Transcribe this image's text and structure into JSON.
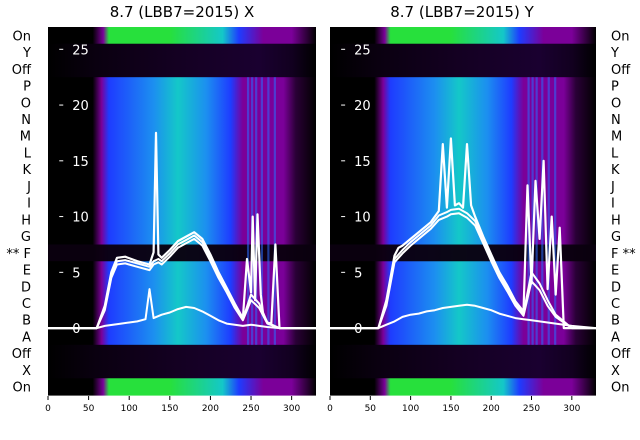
{
  "chart_data": [
    {
      "type": "heatmap",
      "title": "8.7 (LBB7=2015) X",
      "row_labels": [
        "On",
        "Y",
        "Off",
        "P",
        "O",
        "N",
        "M",
        "L",
        "K",
        "J",
        "I",
        "H",
        "G",
        "** F",
        "E",
        "D",
        "C",
        "B",
        "A",
        "Off",
        "X",
        "On"
      ],
      "marked_row": "** F",
      "xlim": [
        0,
        330
      ],
      "xticks": [
        0,
        50,
        100,
        150,
        200,
        250,
        300
      ],
      "ylim": [
        -6,
        27
      ],
      "yticks": [
        0,
        5,
        10,
        15,
        20,
        25
      ],
      "colormap": [
        "#000000",
        "#7b0099",
        "#1e3cff",
        "#1c8ff0",
        "#14c8c8",
        "#27e03c"
      ],
      "series": [
        {
          "x": [
            0,
            60,
            70,
            78,
            85,
            95,
            110,
            125,
            130,
            133,
            136,
            140,
            150,
            160,
            170,
            180,
            190,
            200,
            210,
            220,
            230,
            240,
            245,
            250,
            252,
            255,
            258,
            262,
            265,
            270,
            275,
            280,
            285,
            300,
            330
          ],
          "values": [
            0,
            0,
            2.0,
            5.0,
            6.3,
            6.4,
            6.0,
            5.7,
            6.8,
            17.5,
            6.6,
            6.3,
            7.0,
            7.8,
            8.2,
            8.6,
            8.0,
            6.6,
            5.0,
            3.6,
            2.2,
            0.9,
            6.2,
            3.2,
            10.0,
            2.5,
            10.2,
            3.0,
            1.2,
            0.5,
            0.4,
            7.5,
            0,
            0,
            0
          ]
        },
        {
          "x": [
            0,
            60,
            70,
            78,
            85,
            95,
            110,
            125,
            130,
            136,
            140,
            150,
            160,
            170,
            180,
            190,
            200,
            210,
            220,
            230,
            240,
            250,
            260,
            270,
            285,
            300,
            330
          ],
          "values": [
            0,
            0,
            1.8,
            4.8,
            6.0,
            6.1,
            5.8,
            5.5,
            6.0,
            6.2,
            6.0,
            6.7,
            7.5,
            7.9,
            8.3,
            7.7,
            6.3,
            4.8,
            3.4,
            2.0,
            0.8,
            3.0,
            2.2,
            0.5,
            0,
            0,
            0
          ]
        },
        {
          "x": [
            0,
            60,
            70,
            78,
            85,
            95,
            110,
            125,
            130,
            136,
            140,
            150,
            160,
            170,
            180,
            190,
            200,
            210,
            220,
            230,
            240,
            250,
            260,
            270,
            285,
            300,
            330
          ],
          "values": [
            0,
            0,
            1.6,
            4.5,
            5.7,
            5.8,
            5.5,
            5.2,
            5.7,
            5.9,
            5.7,
            6.4,
            7.2,
            7.6,
            8.0,
            7.4,
            6.0,
            4.5,
            3.2,
            1.8,
            0.7,
            2.5,
            1.8,
            0.4,
            0,
            0,
            0
          ]
        },
        {
          "x": [
            0,
            60,
            70,
            80,
            90,
            100,
            110,
            120,
            125,
            130,
            140,
            150,
            160,
            170,
            180,
            190,
            200,
            210,
            220,
            230,
            240,
            250,
            260,
            270,
            285,
            300,
            330
          ],
          "values": [
            0,
            0,
            0.2,
            0.3,
            0.4,
            0.5,
            0.6,
            0.8,
            3.5,
            0.9,
            1.2,
            1.4,
            1.7,
            1.9,
            1.8,
            1.5,
            1.1,
            0.7,
            0.4,
            0.3,
            0.2,
            0.3,
            0.2,
            0.1,
            0,
            0,
            0
          ]
        }
      ]
    },
    {
      "type": "heatmap",
      "title": "8.7 (LBB7=2015) Y",
      "row_labels": [
        "On",
        "Y",
        "Off",
        "P",
        "O",
        "N",
        "M",
        "L",
        "K",
        "J",
        "I",
        "H",
        "G",
        "F **",
        "E",
        "D",
        "C",
        "B",
        "A",
        "Off",
        "X",
        "On"
      ],
      "marked_row": "F **",
      "xlim": [
        0,
        330
      ],
      "xticks": [
        0,
        50,
        100,
        150,
        200,
        250,
        300
      ],
      "ylim": [
        -6,
        27
      ],
      "yticks": [
        0,
        5,
        10,
        15,
        20,
        25
      ],
      "colormap": [
        "#000000",
        "#7b0099",
        "#1e3cff",
        "#1c8ff0",
        "#14c8c8",
        "#27e03c"
      ],
      "series": [
        {
          "x": [
            0,
            60,
            70,
            80,
            85,
            90,
            100,
            110,
            125,
            135,
            140,
            145,
            150,
            155,
            160,
            165,
            170,
            175,
            180,
            190,
            200,
            210,
            220,
            230,
            240,
            245,
            250,
            255,
            260,
            265,
            270,
            275,
            280,
            285,
            290,
            300,
            330
          ],
          "values": [
            0,
            0,
            2.5,
            6.5,
            7.2,
            7.4,
            8.0,
            8.6,
            9.5,
            10.5,
            16.5,
            10.8,
            17.0,
            11.0,
            11.2,
            10.8,
            16.5,
            11.0,
            10.0,
            8.2,
            6.6,
            5.0,
            3.8,
            2.4,
            1.5,
            12.8,
            4.0,
            13.2,
            8.0,
            15.0,
            3.5,
            10.0,
            3.0,
            9.0,
            0,
            0,
            0
          ]
        },
        {
          "x": [
            0,
            60,
            70,
            80,
            90,
            100,
            110,
            125,
            135,
            145,
            150,
            160,
            170,
            180,
            190,
            200,
            210,
            220,
            230,
            240,
            250,
            260,
            270,
            280,
            300,
            330
          ],
          "values": [
            0,
            0,
            2.2,
            6.2,
            7.0,
            7.7,
            8.3,
            9.2,
            10.1,
            10.4,
            10.6,
            10.7,
            10.3,
            9.6,
            7.9,
            6.3,
            4.8,
            3.6,
            2.2,
            1.3,
            5.0,
            4.0,
            2.5,
            1.2,
            0,
            0
          ]
        },
        {
          "x": [
            0,
            60,
            70,
            80,
            90,
            100,
            110,
            125,
            135,
            145,
            150,
            160,
            170,
            180,
            190,
            200,
            210,
            220,
            230,
            240,
            250,
            260,
            270,
            280,
            300,
            330
          ],
          "values": [
            0,
            0,
            2.0,
            5.9,
            6.7,
            7.4,
            8.0,
            8.9,
            9.7,
            10.0,
            10.2,
            10.3,
            9.9,
            9.2,
            7.6,
            6.0,
            4.5,
            3.3,
            2.0,
            1.1,
            4.2,
            3.4,
            2.0,
            1.0,
            0,
            0
          ]
        },
        {
          "x": [
            0,
            60,
            70,
            80,
            90,
            100,
            110,
            120,
            130,
            140,
            150,
            160,
            170,
            180,
            190,
            200,
            210,
            220,
            230,
            240,
            250,
            260,
            270,
            280,
            300,
            330
          ],
          "values": [
            0,
            0,
            0.3,
            0.6,
            1.0,
            1.2,
            1.3,
            1.5,
            1.6,
            1.8,
            1.9,
            2.0,
            2.1,
            2.0,
            1.8,
            1.6,
            1.3,
            1.1,
            0.9,
            0.8,
            0.7,
            0.6,
            0.5,
            0.4,
            0.2,
            0
          ]
        }
      ]
    }
  ]
}
